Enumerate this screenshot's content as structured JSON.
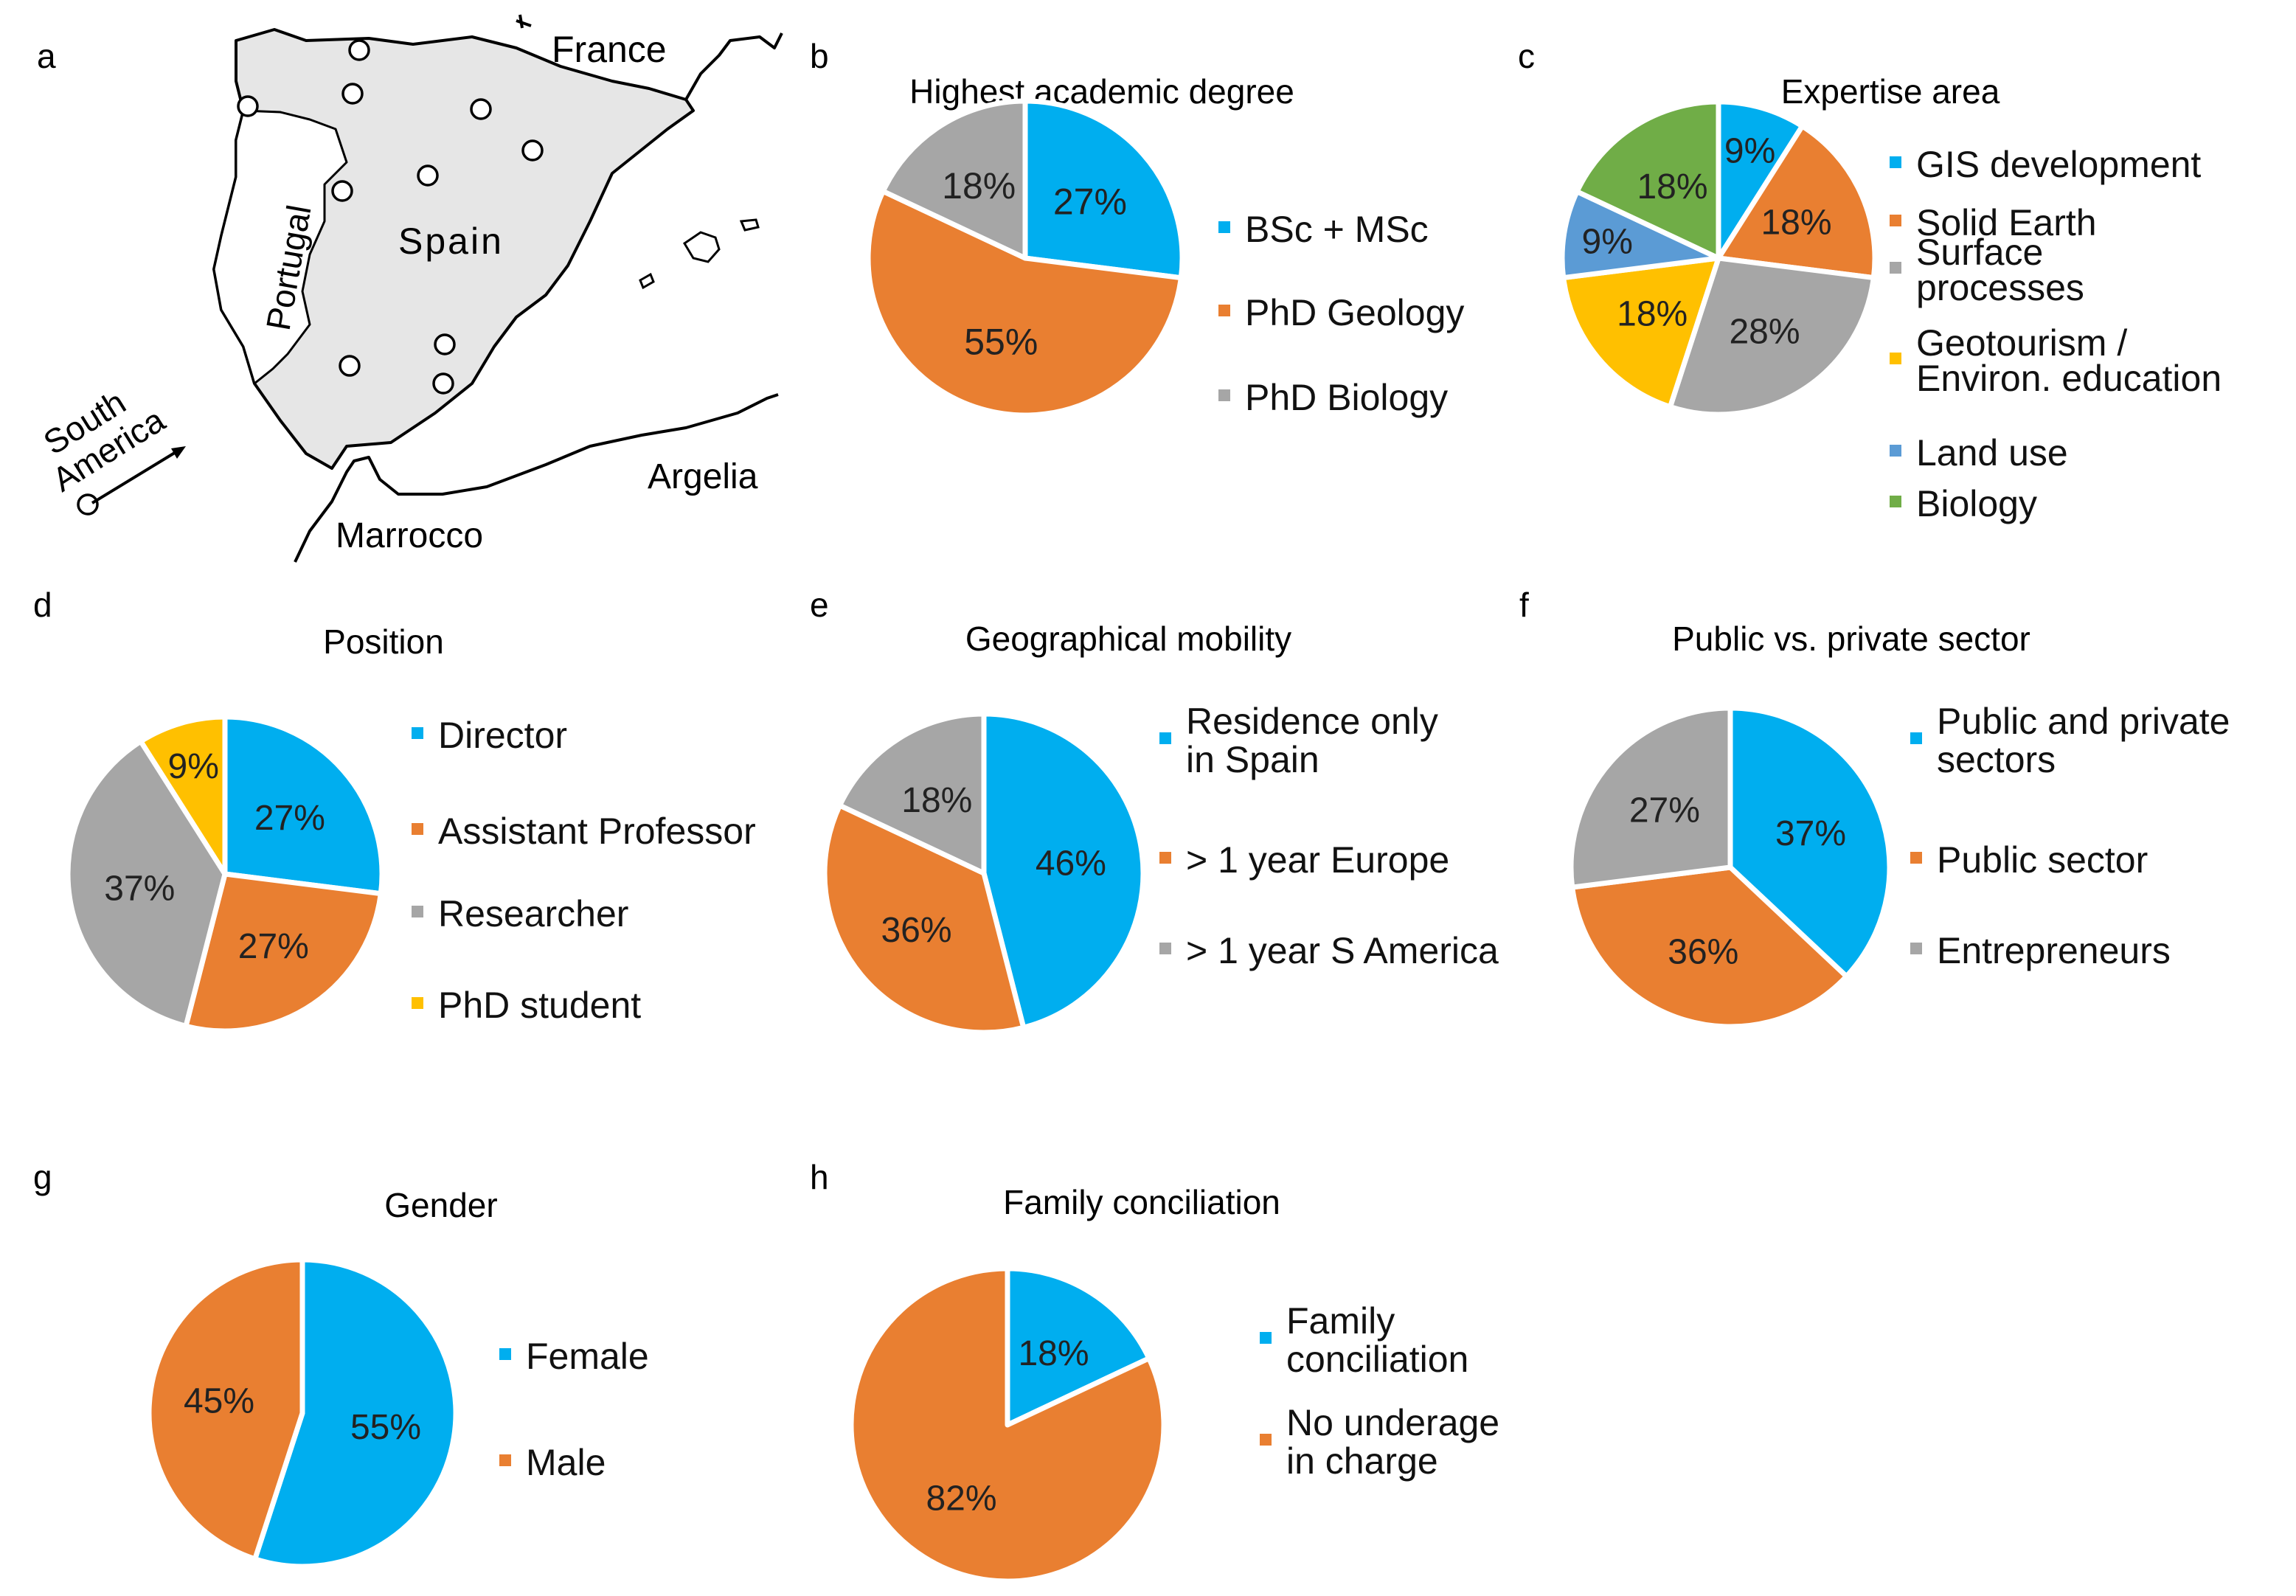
{
  "colors": {
    "blue": "#00AEEF",
    "orange": "#E97F31",
    "gray": "#A6A6A6",
    "yellow": "#FFC000",
    "steelblue": "#5B9BD5",
    "green": "#70AD47",
    "map_land": "#E6E6E6",
    "stroke": "#000000"
  },
  "map": {
    "panel_letter": "a",
    "labels": {
      "france": "France",
      "spain": "Spain",
      "portugal": "Portugal",
      "marrocco": "Marrocco",
      "argelia": "Argelia",
      "south_america_line1": "South",
      "south_america_line2": "America"
    }
  },
  "chart_data": [
    {
      "panel": "b",
      "type": "pie",
      "title": "Highest academic degree",
      "slices": [
        {
          "label": "BSc + MSc",
          "value": 27,
          "value_label": "27%",
          "color": "blue"
        },
        {
          "label": "PhD Geology",
          "value": 55,
          "value_label": "55%",
          "color": "orange"
        },
        {
          "label": "PhD Biology",
          "value": 18,
          "value_label": "18%",
          "color": "gray"
        }
      ]
    },
    {
      "panel": "c",
      "type": "pie",
      "title": "Expertise area",
      "slices": [
        {
          "label": "GIS development",
          "value": 9,
          "value_label": "9%",
          "color": "blue"
        },
        {
          "label": "Solid Earth",
          "value": 18,
          "value_label": "18%",
          "color": "orange"
        },
        {
          "label": "Surface processes",
          "legend_lines": [
            "Surface",
            "processes"
          ],
          "value": 28,
          "value_label": "28%",
          "color": "gray"
        },
        {
          "label": "Geotourism / Environ. education",
          "legend_lines": [
            "Geotourism /",
            "Environ. education"
          ],
          "value": 18,
          "value_label": "18%",
          "color": "yellow"
        },
        {
          "label": "Land use",
          "value": 9,
          "value_label": "9%",
          "color": "steelblue"
        },
        {
          "label": "Biology",
          "value": 18,
          "value_label": "18%",
          "color": "green"
        }
      ]
    },
    {
      "panel": "d",
      "type": "pie",
      "title": "Position",
      "slices": [
        {
          "label": "Director",
          "value": 27,
          "value_label": "27%",
          "color": "blue"
        },
        {
          "label": "Assistant Professor",
          "value": 27,
          "value_label": "27%",
          "color": "orange"
        },
        {
          "label": "Researcher",
          "value": 37,
          "value_label": "37%",
          "color": "gray"
        },
        {
          "label": "PhD student",
          "value": 9,
          "value_label": "9%",
          "color": "yellow"
        }
      ]
    },
    {
      "panel": "e",
      "type": "pie",
      "title": "Geographical mobility",
      "slices": [
        {
          "label": "Residence only in Spain",
          "legend_lines": [
            "Residence only",
            "in Spain"
          ],
          "value": 46,
          "value_label": "46%",
          "color": "blue"
        },
        {
          "label": "> 1 year Europe",
          "value": 36,
          "value_label": "36%",
          "color": "orange"
        },
        {
          "label": "> 1 year S America",
          "value": 18,
          "value_label": "18%",
          "color": "gray"
        }
      ]
    },
    {
      "panel": "f",
      "type": "pie",
      "title": "Public vs. private sector",
      "slices": [
        {
          "label": "Public and private sectors",
          "legend_lines": [
            "Public and private",
            "sectors"
          ],
          "value": 37,
          "value_label": "37%",
          "color": "blue"
        },
        {
          "label": "Public sector",
          "value": 36,
          "value_label": "36%",
          "color": "orange"
        },
        {
          "label": "Entrepreneurs",
          "value": 27,
          "value_label": "27%",
          "color": "gray"
        }
      ]
    },
    {
      "panel": "g",
      "type": "pie",
      "title": "Gender",
      "slices": [
        {
          "label": "Female",
          "value": 55,
          "value_label": "55%",
          "color": "blue"
        },
        {
          "label": "Male",
          "value": 45,
          "value_label": "45%",
          "color": "orange"
        }
      ]
    },
    {
      "panel": "h",
      "type": "pie",
      "title": "Family conciliation",
      "slices": [
        {
          "label": "Family conciliation",
          "legend_lines": [
            "Family",
            "conciliation"
          ],
          "value": 18,
          "value_label": "18%",
          "color": "blue"
        },
        {
          "label": "No underage in charge",
          "legend_lines": [
            "No underage",
            "in charge"
          ],
          "value": 82,
          "value_label": "82%",
          "color": "orange"
        }
      ]
    }
  ]
}
